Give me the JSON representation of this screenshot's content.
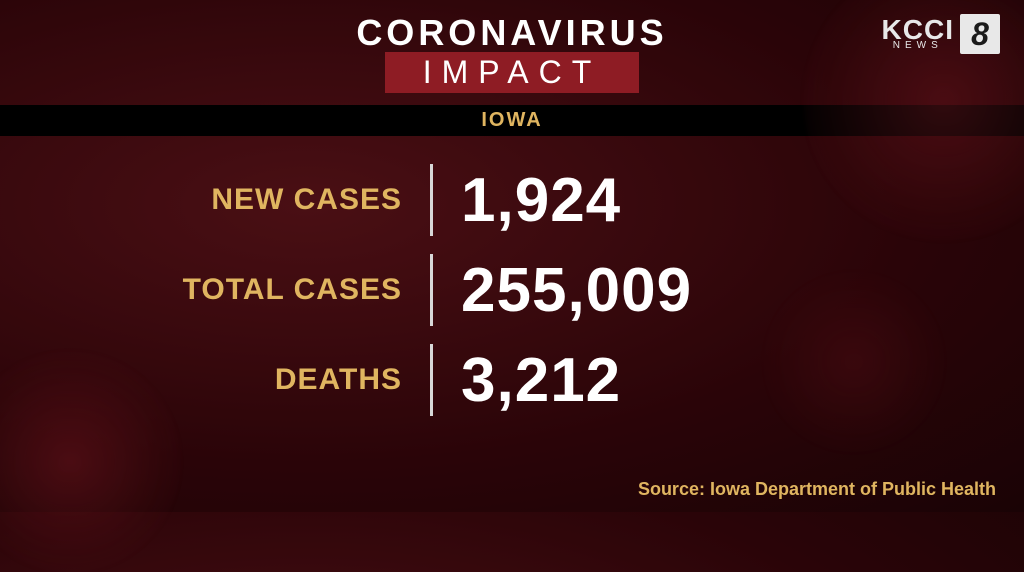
{
  "colors": {
    "accent_gold": "#e0b560",
    "accent_red": "#8e1c24",
    "text_white": "#ffffff",
    "bg_dark": "#2a0408"
  },
  "header": {
    "title_main": "CORONAVIRUS",
    "title_sub": "IMPACT"
  },
  "logo": {
    "station": "KCCI",
    "sub": "NEWS",
    "channel": "8"
  },
  "state_bar": {
    "label": "IOWA"
  },
  "stats": {
    "rows": [
      {
        "label": "NEW CASES",
        "value": "1,924"
      },
      {
        "label": "TOTAL CASES",
        "value": "255,009"
      },
      {
        "label": "DEATHS",
        "value": "3,212"
      }
    ]
  },
  "source": "Source: Iowa Department of Public Health",
  "typography": {
    "title_main_size": 36,
    "title_sub_size": 32,
    "stat_label_size": 30,
    "stat_value_size": 62,
    "source_size": 18
  }
}
